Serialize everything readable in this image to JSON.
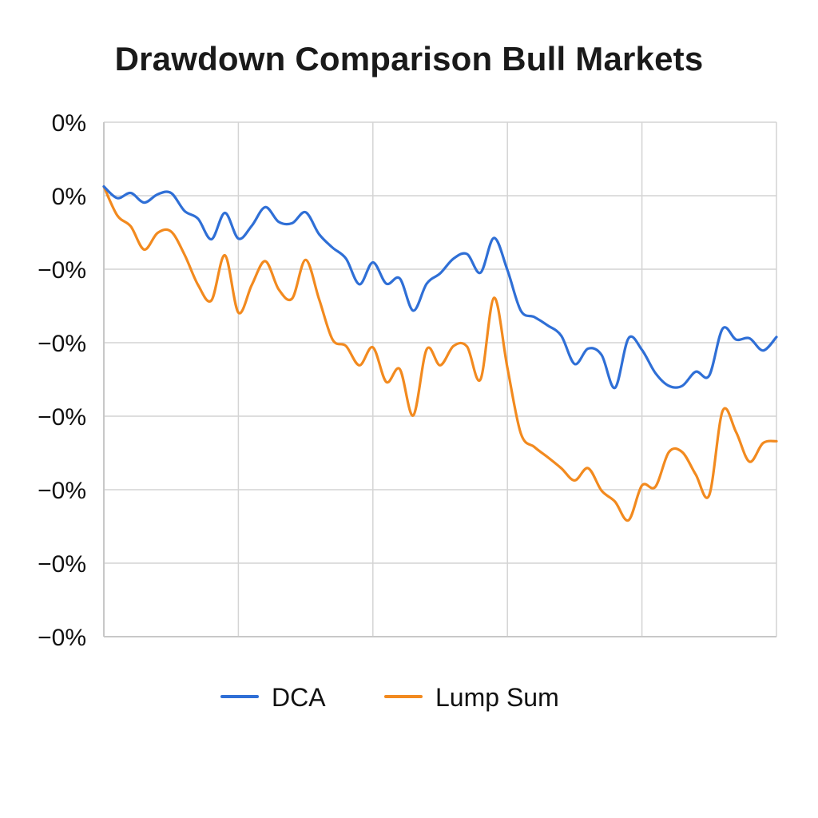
{
  "chart_data": {
    "type": "line",
    "title": "Drawdown Comparison Bull Markets",
    "xlabel": "",
    "ylabel": "",
    "ytick_labels": [
      "0%",
      "0%",
      "−0%",
      "−0%",
      "−0%",
      "−0%",
      "−0%",
      "−0%"
    ],
    "ylim": [
      -7,
      1
    ],
    "xlim": [
      0,
      100
    ],
    "grid": true,
    "legend_position": "bottom",
    "x": [
      0,
      2,
      4,
      6,
      8,
      10,
      12,
      14,
      16,
      18,
      20,
      22,
      24,
      26,
      28,
      30,
      32,
      34,
      36,
      38,
      40,
      42,
      44,
      46,
      48,
      50,
      52,
      54,
      56,
      58,
      60,
      62,
      64,
      66,
      68,
      70,
      72,
      74,
      76,
      78,
      80,
      82,
      84,
      86,
      88,
      90,
      92,
      94,
      96,
      98,
      100
    ],
    "series": [
      {
        "name": "DCA",
        "color": "#2f6fd6",
        "values": [
          0.0,
          -0.18,
          -0.1,
          -0.25,
          -0.12,
          -0.1,
          -0.38,
          -0.5,
          -0.82,
          -0.41,
          -0.81,
          -0.61,
          -0.32,
          -0.55,
          -0.57,
          -0.4,
          -0.74,
          -0.95,
          -1.12,
          -1.52,
          -1.18,
          -1.51,
          -1.43,
          -1.93,
          -1.51,
          -1.35,
          -1.12,
          -1.05,
          -1.34,
          -0.8,
          -1.3,
          -1.93,
          -2.03,
          -2.16,
          -2.32,
          -2.76,
          -2.52,
          -2.62,
          -3.13,
          -2.36,
          -2.54,
          -2.9,
          -3.1,
          -3.1,
          -2.88,
          -2.94,
          -2.21,
          -2.38,
          -2.36,
          -2.55,
          -2.34
        ]
      },
      {
        "name": "Lump Sum",
        "color": "#f28a1f",
        "values": [
          0.0,
          -0.45,
          -0.62,
          -0.98,
          -0.72,
          -0.7,
          -1.06,
          -1.53,
          -1.77,
          -1.07,
          -1.96,
          -1.53,
          -1.16,
          -1.6,
          -1.74,
          -1.14,
          -1.75,
          -2.38,
          -2.48,
          -2.78,
          -2.5,
          -3.04,
          -2.84,
          -3.56,
          -2.53,
          -2.78,
          -2.48,
          -2.49,
          -3.0,
          -1.73,
          -2.82,
          -3.84,
          -4.05,
          -4.21,
          -4.38,
          -4.57,
          -4.38,
          -4.73,
          -4.9,
          -5.19,
          -4.65,
          -4.67,
          -4.13,
          -4.13,
          -4.48,
          -4.8,
          -3.49,
          -3.82,
          -4.28,
          -3.99,
          -3.96
        ]
      }
    ]
  }
}
